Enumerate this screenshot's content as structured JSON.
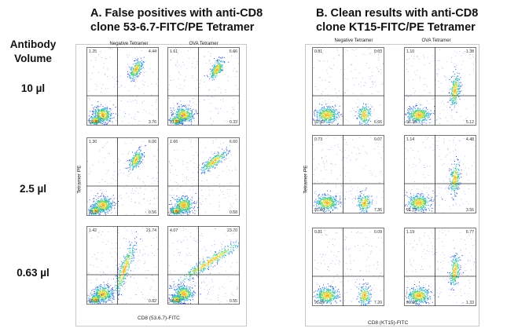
{
  "heading": {
    "label": "Antibody\nVolume"
  },
  "volumes": [
    "10 µl",
    "2.5 µl",
    "0.63 µl"
  ],
  "chart_data": [
    {
      "type": "scatter",
      "title": "A. False positives with anti-CD8\nclone 53-6.7-FITC/PE Tetramer",
      "xlabel": "CD8 (53.6.7)-FITC",
      "ylabel": "Tetramer PE",
      "columns": [
        "Negative Tetramer",
        "OVA Tetramer"
      ],
      "rows": [
        "10 µl",
        "2.5 µl",
        "0.63 µl"
      ],
      "panels": [
        {
          "row": 0,
          "col": 0,
          "quadrants": {
            "ul": "1.25",
            "ur": "4.44",
            "ll": "89.48",
            "lr": "3.76"
          },
          "pattern": "diag-blob"
        },
        {
          "row": 0,
          "col": 1,
          "quadrants": {
            "ul": "1.61",
            "ur": "6.66",
            "ll": "91.59",
            "lr": "0.33"
          },
          "pattern": "diag-blob"
        },
        {
          "row": 1,
          "col": 0,
          "quadrants": {
            "ul": "1.36",
            "ur": "6.06",
            "ll": "91.81",
            "lr": "0.56"
          },
          "pattern": "diag-blob"
        },
        {
          "row": 1,
          "col": 1,
          "quadrants": {
            "ul": "1.66",
            "ur": "6.60",
            "ll": "91.56",
            "lr": "0.58"
          },
          "pattern": "diag-streak"
        },
        {
          "row": 2,
          "col": 0,
          "quadrants": {
            "ul": "1.42",
            "ur": "21.74",
            "ll": "89.60",
            "lr": "0.82"
          },
          "pattern": "diag-long"
        },
        {
          "row": 2,
          "col": 1,
          "quadrants": {
            "ul": "4.07",
            "ur": "23.70",
            "ll": "69.63",
            "lr": "0.55"
          },
          "pattern": "diag-full"
        }
      ]
    },
    {
      "type": "scatter",
      "title": "B. Clean results with anti-CD8\nclone KT15-FITC/PE Tetramer",
      "xlabel": "CD8 (KT15)-FITC",
      "ylabel": "Tetramer PE",
      "columns": [
        "Negative Tetramer",
        "OVA Tetramer"
      ],
      "rows": [
        "10 µl",
        "2.5 µl",
        "0.63 µl"
      ],
      "panels": [
        {
          "row": 0,
          "col": 0,
          "quadrants": {
            "ul": "0.81",
            "ur": "0.03",
            "ll": "92.33",
            "lr": "6.66"
          },
          "pattern": "lr-only"
        },
        {
          "row": 0,
          "col": 1,
          "quadrants": {
            "ul": "1.10",
            "ur": "1.38",
            "ll": "96.36",
            "lr": "5.12"
          },
          "pattern": "lr-up"
        },
        {
          "row": 1,
          "col": 0,
          "quadrants": {
            "ul": "0.73",
            "ur": "0.07",
            "ll": "91.80",
            "lr": "7.36"
          },
          "pattern": "lr-only"
        },
        {
          "row": 1,
          "col": 1,
          "quadrants": {
            "ul": "1.14",
            "ur": "4.48",
            "ll": "91.73",
            "lr": "3.56"
          },
          "pattern": "lr-up"
        },
        {
          "row": 2,
          "col": 0,
          "quadrants": {
            "ul": "0.81",
            "ur": "0.09",
            "ll": "91.89",
            "lr": "7.20"
          },
          "pattern": "lr-only"
        },
        {
          "row": 2,
          "col": 1,
          "quadrants": {
            "ul": "1.19",
            "ur": "6.77",
            "ll": "90.60",
            "lr": "1.33"
          },
          "pattern": "lr-up"
        }
      ]
    }
  ]
}
